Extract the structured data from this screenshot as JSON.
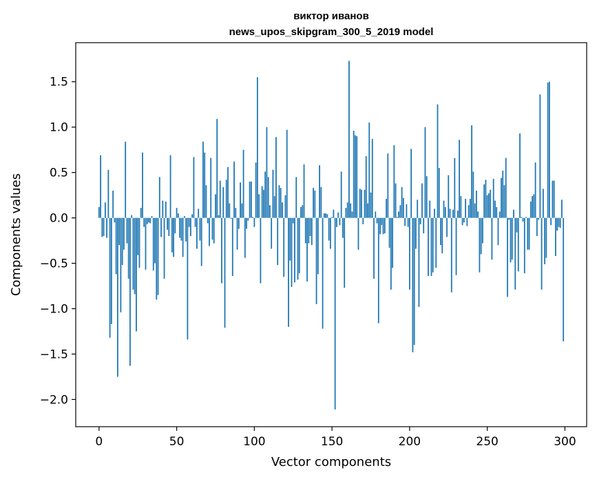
{
  "chart_data": {
    "type": "bar",
    "title": "виктор иванов",
    "subtitle": "news_upos_skipgram_300_5_2019 model",
    "xlabel": "Vector components",
    "ylabel": "Components values",
    "xlim": [
      -15,
      314
    ],
    "ylim": [
      -2.3,
      1.93
    ],
    "xticks": [
      0,
      50,
      100,
      150,
      200,
      250,
      300
    ],
    "xtick_labels": [
      "0",
      "50",
      "100",
      "150",
      "200",
      "250",
      "300"
    ],
    "yticks": [
      -2.0,
      -1.5,
      -1.0,
      -0.5,
      0.0,
      0.5,
      1.0,
      1.5
    ],
    "ytick_labels": [
      "−2.0",
      "−1.5",
      "−1.0",
      "−0.5",
      "0.0",
      "0.5",
      "1.0",
      "1.5"
    ],
    "bar_color": "#1f77b4",
    "values": [
      0.12,
      0.69,
      -0.21,
      -0.2,
      0.17,
      -0.22,
      0.53,
      -1.32,
      -1.17,
      0.3,
      -0.05,
      -0.62,
      -1.75,
      -0.3,
      -1.04,
      -0.52,
      -0.35,
      0.84,
      -0.28,
      -0.67,
      -1.63,
      0.03,
      -0.79,
      -0.84,
      -1.25,
      -0.41,
      -0.55,
      0.11,
      0.72,
      -0.1,
      -0.57,
      -0.07,
      -0.05,
      -0.06,
      0.02,
      -0.58,
      -0.5,
      -0.9,
      -0.85,
      0.45,
      -0.21,
      0.19,
      -0.67,
      0.18,
      -0.13,
      -0.2,
      0.69,
      -0.38,
      -0.43,
      -0.17,
      0.11,
      0.05,
      -0.22,
      -0.25,
      -0.43,
      0.02,
      -0.26,
      -1.34,
      -0.1,
      -0.2,
      0.04,
      0.67,
      -0.1,
      -0.34,
      0.1,
      -0.25,
      -0.53,
      0.84,
      0.72,
      0.36,
      -0.06,
      -0.31,
      0.66,
      -0.24,
      -0.28,
      0.26,
      1.09,
      0.03,
      0.41,
      -0.72,
      0.34,
      -1.21,
      0.42,
      0.56,
      0.16,
      -0.01,
      -0.64,
      0.62,
      0.11,
      -0.35,
      -0.12,
      0.39,
      0.16,
      0.75,
      -0.44,
      -0.12,
      -0.03,
      0.4,
      0.4,
      0.01,
      -0.1,
      0.61,
      1.55,
      0.26,
      -0.72,
      0.35,
      0.31,
      0.51,
      1.0,
      0.45,
      0.14,
      -0.34,
      0.53,
      0.24,
      0.89,
      -0.52,
      0.36,
      0.33,
      0.17,
      -0.65,
      0.25,
      0.97,
      -1.2,
      -0.47,
      -0.76,
      -0.06,
      -0.71,
      0.45,
      -0.68,
      -0.61,
      0.12,
      0.14,
      0.59,
      -0.28,
      -0.7,
      -0.28,
      -0.2,
      -0.3,
      0.33,
      0.3,
      -0.95,
      -0.62,
      0.58,
      0.34,
      -1.22,
      0.05,
      0.05,
      0.04,
      -0.25,
      -0.34,
      0.01,
      0.09,
      -2.11,
      -0.1,
      0.06,
      -0.08,
      0.51,
      -0.22,
      -0.77,
      0.11,
      0.17,
      1.73,
      0.16,
      0.07,
      0.96,
      0.91,
      0.9,
      -0.35,
      0.32,
      0.31,
      -0.07,
      0.31,
      0.68,
      0.16,
      1.05,
      0.28,
      0.87,
      -0.67,
      0.07,
      -0.06,
      -1.16,
      -0.18,
      -0.08,
      -0.18,
      -0.17,
      0.21,
      0.71,
      -0.33,
      -0.79,
      -0.55,
      0.8,
      0.38,
      0.01,
      0.07,
      0.14,
      0.34,
      0.22,
      -0.09,
      0.15,
      -0.1,
      -0.79,
      0.76,
      -1.48,
      -1.4,
      -0.34,
      0.2,
      -0.98,
      -0.07,
      0.38,
      -0.17,
      1.0,
      0.46,
      -0.64,
      0.19,
      -0.64,
      -0.6,
      0.1,
      -0.55,
      1.25,
      0.55,
      -0.3,
      -0.39,
      0.19,
      0.12,
      -0.21,
      0.47,
      0.1,
      -0.82,
      0.09,
      0.66,
      -0.63,
      0.08,
      0.86,
      0.24,
      -0.08,
      -0.05,
      0.21,
      -0.09,
      0.14,
      0.21,
      1.02,
      0.51,
      0.16,
      0.3,
      0.07,
      -0.6,
      -0.4,
      -0.28,
      0.37,
      0.42,
      0.25,
      0.27,
      0.31,
      -0.46,
      0.43,
      0.19,
      0.12,
      -0.3,
      0.07,
      0.44,
      0.52,
      0.36,
      0.66,
      -0.87,
      -0.02,
      -0.49,
      -0.46,
      0.09,
      -0.79,
      -0.16,
      -0.59,
      0.93,
      0.01,
      -0.04,
      -0.61,
      0.01,
      -0.35,
      -0.35,
      0.18,
      0.24,
      0.26,
      0.61,
      -0.2,
      -0.02,
      1.36,
      -0.79,
      0.32,
      -0.51,
      -0.44,
      1.49,
      1.5,
      -0.08,
      0.41,
      0.41,
      -0.42,
      -0.14,
      -0.1,
      -0.11,
      0.2,
      -1.36
    ]
  }
}
